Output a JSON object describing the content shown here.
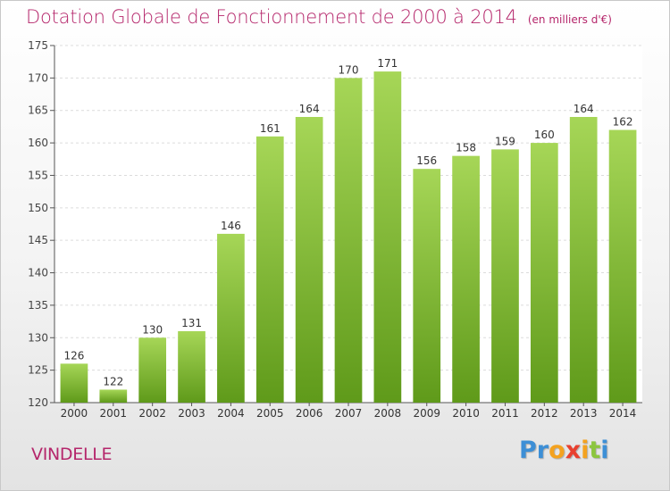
{
  "header": {
    "title": "Dotation Globale de Fonctionnement de 2000 à 2014",
    "unit": "(en milliers d'€)"
  },
  "footer": {
    "place": "VINDELLE",
    "logo_text": "Proxiti"
  },
  "colors": {
    "title": "#b5266b",
    "bar_top": "#a6d657",
    "bar_bottom": "#5f9a1a"
  },
  "chart_data": {
    "type": "bar",
    "title": "Dotation Globale de Fonctionnement de 2000 à 2014",
    "subtitle": "(en milliers d'€)",
    "xlabel": "",
    "ylabel": "",
    "categories": [
      "2000",
      "2001",
      "2002",
      "2003",
      "2004",
      "2005",
      "2006",
      "2007",
      "2008",
      "2009",
      "2010",
      "2011",
      "2012",
      "2013",
      "2014"
    ],
    "values": [
      126,
      122,
      130,
      131,
      146,
      161,
      164,
      170,
      171,
      156,
      158,
      159,
      160,
      164,
      162
    ],
    "ylim": [
      120,
      175
    ],
    "yticks": [
      120,
      125,
      130,
      135,
      140,
      145,
      150,
      155,
      160,
      165,
      170,
      175
    ],
    "grid": true,
    "legend": "none",
    "data_labels": true
  }
}
